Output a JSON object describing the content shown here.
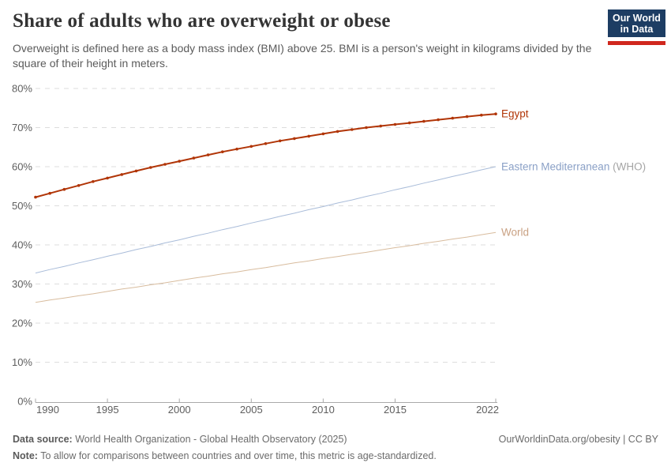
{
  "header": {
    "title": "Share of adults who are overweight or obese",
    "subtitle": "Overweight is defined here as a body mass index (BMI) above 25. BMI is a person's weight in kilograms divided by the square of their height in meters.",
    "logo": {
      "line1": "Our World",
      "line2": "in Data",
      "bg_color": "#1d3d63",
      "bar_color": "#d0271d"
    }
  },
  "chart_data": {
    "type": "line",
    "title": "Share of adults who are overweight or obese",
    "xlabel": "",
    "ylabel": "",
    "xlim": [
      1990,
      2022
    ],
    "ylim": [
      0,
      80
    ],
    "x_ticks": [
      1990,
      1995,
      2000,
      2005,
      2010,
      2015,
      2022
    ],
    "y_ticks": [
      0,
      10,
      20,
      30,
      40,
      50,
      60,
      70,
      80
    ],
    "y_tick_suffix": "%",
    "grid": "horizontal dashed",
    "legend_position": "end-of-line labels",
    "axis_color": "#a9a9a9",
    "grid_color": "#dddddd",
    "tick_label_color": "#5e5e5e",
    "years": [
      1990,
      1991,
      1992,
      1993,
      1994,
      1995,
      1996,
      1997,
      1998,
      1999,
      2000,
      2001,
      2002,
      2003,
      2004,
      2005,
      2006,
      2007,
      2008,
      2009,
      2010,
      2011,
      2012,
      2013,
      2014,
      2015,
      2016,
      2017,
      2018,
      2019,
      2020,
      2021,
      2022
    ],
    "series": [
      {
        "name": "Egypt",
        "color": "#b13507",
        "label_color": "#b13507",
        "line_width": 2,
        "markers": true,
        "values": [
          52.2,
          53.2,
          54.2,
          55.2,
          56.2,
          57.1,
          58.0,
          58.9,
          59.8,
          60.6,
          61.4,
          62.2,
          63.0,
          63.8,
          64.5,
          65.2,
          65.9,
          66.6,
          67.2,
          67.8,
          68.4,
          69.0,
          69.5,
          70.0,
          70.4,
          70.8,
          71.2,
          71.6,
          72.0,
          72.4,
          72.8,
          73.2,
          73.5
        ]
      },
      {
        "name": "Eastern Mediterranean",
        "label_suffix": " (WHO)",
        "color": "#a9bcd9",
        "label_color": "#8ba1c7",
        "suffix_color": "#a5a5a5",
        "line_width": 1,
        "markers": false,
        "values": [
          32.8,
          33.7,
          34.5,
          35.4,
          36.2,
          37.1,
          37.9,
          38.8,
          39.6,
          40.5,
          41.3,
          42.2,
          43.0,
          43.9,
          44.7,
          45.6,
          46.4,
          47.3,
          48.1,
          49.0,
          49.8,
          50.7,
          51.5,
          52.4,
          53.2,
          54.1,
          54.9,
          55.8,
          56.6,
          57.5,
          58.3,
          59.2,
          60.0
        ]
      },
      {
        "name": "World",
        "color": "#d8bc9e",
        "label_color": "#c9a183",
        "line_width": 1,
        "markers": false,
        "values": [
          25.3,
          25.9,
          26.4,
          27.0,
          27.5,
          28.1,
          28.7,
          29.2,
          29.8,
          30.3,
          30.9,
          31.5,
          32.0,
          32.6,
          33.1,
          33.7,
          34.2,
          34.8,
          35.4,
          35.9,
          36.5,
          37.0,
          37.6,
          38.1,
          38.7,
          39.3,
          39.8,
          40.4,
          40.9,
          41.5,
          42.0,
          42.6,
          43.2
        ]
      }
    ]
  },
  "footer": {
    "source_label": "Data source:",
    "source_text": "World Health Organization - Global Health Observatory (2025)",
    "right_text": "OurWorldinData.org/obesity | CC BY",
    "note_label": "Note:",
    "note_text": "To allow for comparisons between countries and over time, this metric is age-standardized."
  }
}
